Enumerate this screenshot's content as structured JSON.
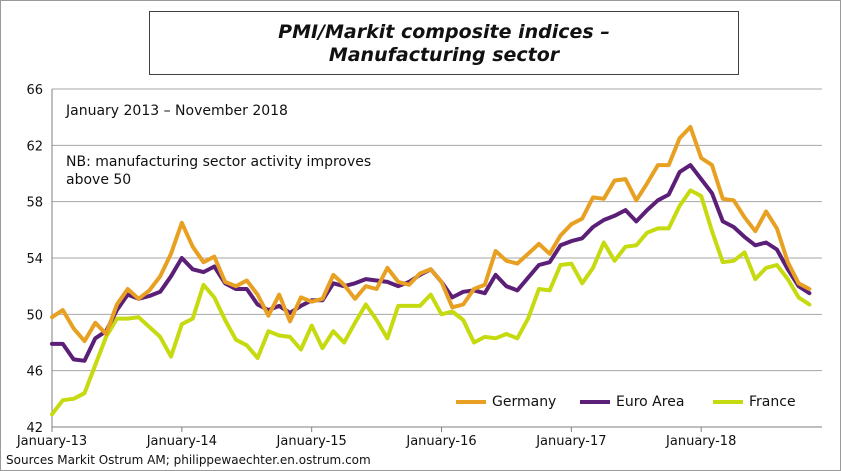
{
  "title_line1": "PMI/Markit composite indices –",
  "title_line2": "Manufacturing sector",
  "note_period": "January 2013 – November 2018",
  "note_nb": "NB: manufacturing sector activity improves above 50",
  "source": "Sources Markit Ostrum AM; philippewaechter.en.ostrum.com",
  "chart_data": {
    "type": "line",
    "title": "PMI/Markit composite indices – Manufacturing sector",
    "xlabel": "",
    "ylabel": "",
    "ylim": [
      42,
      66
    ],
    "yticks": [
      42,
      46,
      50,
      54,
      58,
      62,
      66
    ],
    "x_tick_labels": [
      "January-13",
      "January-14",
      "January-15",
      "January-16",
      "January-17",
      "January-18"
    ],
    "x_tick_month_index": [
      0,
      12,
      24,
      36,
      48,
      60
    ],
    "grid": true,
    "legend_position": "bottom-right",
    "series": [
      {
        "name": "Germany",
        "color": "#E8A023",
        "values": [
          49.8,
          50.3,
          49.0,
          48.1,
          49.4,
          48.6,
          50.7,
          51.8,
          51.1,
          51.7,
          52.7,
          54.3,
          56.5,
          54.8,
          53.7,
          54.1,
          52.3,
          52.0,
          52.4,
          51.4,
          49.9,
          51.4,
          49.5,
          51.2,
          50.9,
          51.1,
          52.8,
          52.1,
          51.1,
          52.0,
          51.8,
          53.3,
          52.3,
          52.1,
          52.9,
          53.2,
          52.3,
          50.5,
          50.7,
          51.8,
          52.1,
          54.5,
          53.8,
          53.6,
          54.3,
          55.0,
          54.3,
          55.6,
          56.4,
          56.8,
          58.3,
          58.2,
          59.5,
          59.6,
          58.1,
          59.3,
          60.6,
          60.6,
          62.5,
          63.3,
          61.1,
          60.6,
          58.2,
          58.1,
          56.9,
          55.9,
          57.3,
          56.1,
          53.7,
          52.2,
          51.8
        ]
      },
      {
        "name": "Euro Area",
        "color": "#5B1F78",
        "values": [
          47.9,
          47.9,
          46.8,
          46.7,
          48.3,
          48.8,
          50.3,
          51.4,
          51.1,
          51.3,
          51.6,
          52.7,
          54.0,
          53.2,
          53.0,
          53.4,
          52.2,
          51.8,
          51.8,
          50.7,
          50.3,
          50.6,
          50.1,
          50.6,
          51.0,
          51.0,
          52.2,
          52.0,
          52.2,
          52.5,
          52.4,
          52.3,
          52.0,
          52.3,
          52.8,
          53.2,
          52.3,
          51.2,
          51.6,
          51.7,
          51.5,
          52.8,
          52.0,
          51.7,
          52.6,
          53.5,
          53.7,
          54.9,
          55.2,
          55.4,
          56.2,
          56.7,
          57.0,
          57.4,
          56.6,
          57.4,
          58.1,
          58.5,
          60.1,
          60.6,
          59.6,
          58.6,
          56.6,
          56.2,
          55.5,
          54.9,
          55.1,
          54.6,
          53.2,
          52.0,
          51.5
        ]
      },
      {
        "name": "France",
        "color": "#C6DA10",
        "values": [
          42.9,
          43.9,
          44.0,
          44.4,
          46.4,
          48.4,
          49.7,
          49.7,
          49.8,
          49.1,
          48.4,
          47.0,
          49.3,
          49.7,
          52.1,
          51.2,
          49.6,
          48.2,
          47.8,
          46.9,
          48.8,
          48.5,
          48.4,
          47.5,
          49.2,
          47.6,
          48.8,
          48.0,
          49.4,
          50.7,
          49.6,
          48.3,
          50.6,
          50.6,
          50.6,
          51.4,
          50.0,
          50.2,
          49.6,
          48.0,
          48.4,
          48.3,
          48.6,
          48.3,
          49.7,
          51.8,
          51.7,
          53.5,
          53.6,
          52.2,
          53.3,
          55.1,
          53.8,
          54.8,
          54.9,
          55.8,
          56.1,
          56.1,
          57.7,
          58.8,
          58.4,
          55.9,
          53.7,
          53.8,
          54.4,
          52.5,
          53.3,
          53.5,
          52.5,
          51.2,
          50.7
        ]
      }
    ]
  }
}
